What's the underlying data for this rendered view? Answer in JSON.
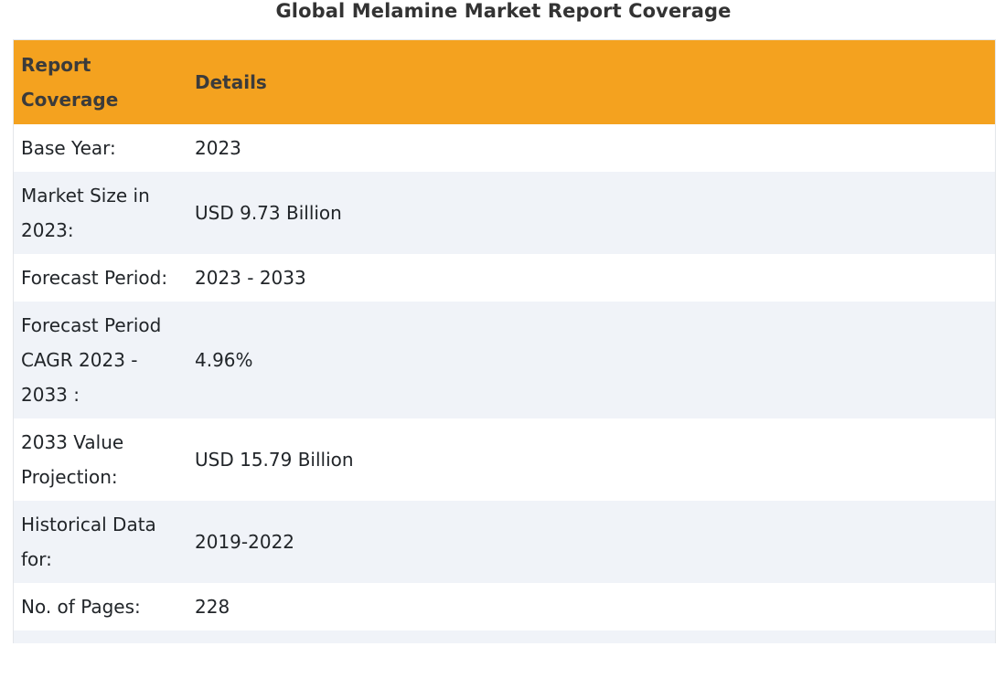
{
  "title": "Global Melamine Market Report Coverage",
  "table": {
    "headers": [
      "Report Coverage",
      "Details"
    ],
    "rows": [
      {
        "label": "Base Year:",
        "value": "2023"
      },
      {
        "label": "Market Size in 2023:",
        "value": "USD 9.73 Billion"
      },
      {
        "label": "Forecast Period:",
        "value": "2023 - 2033"
      },
      {
        "label": "Forecast Period CAGR 2023 - 2033 :",
        "value": "4.96%"
      },
      {
        "label": "2033 Value Projection:",
        "value": "USD 15.79 Billion"
      },
      {
        "label": "Historical Data for:",
        "value": "2019-2022"
      },
      {
        "label": "No. of Pages:",
        "value": "228"
      },
      {
        "label": "",
        "value": ""
      }
    ]
  },
  "colors": {
    "header_bg": "#f4a21f",
    "stripe_bg": "#f0f3f8"
  }
}
